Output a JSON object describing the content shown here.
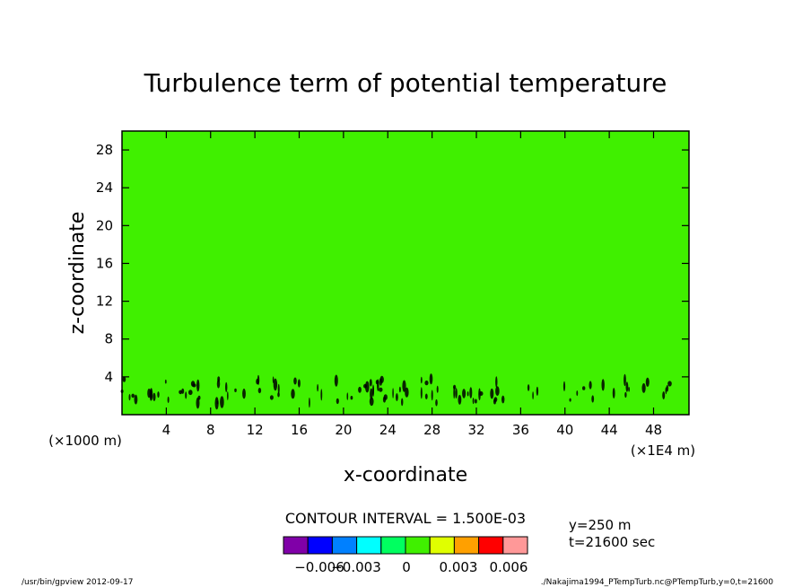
{
  "chart_data": {
    "type": "heatmap",
    "title": "Turbulence term of potential temperature",
    "xlabel": "x-coordinate",
    "ylabel": "z-coordinate",
    "x_unit": "(×1E4 m)",
    "y_unit": "(×1000 m)",
    "xlim": [
      0,
      51.2
    ],
    "ylim": [
      0,
      30
    ],
    "x_ticks": [
      4,
      8,
      12,
      16,
      20,
      24,
      28,
      32,
      36,
      40,
      44,
      48
    ],
    "y_ticks": [
      4,
      8,
      12,
      16,
      20,
      24,
      28
    ],
    "background_level": "0",
    "field_note": "Field is ~0 everywhere; small negative/positive contour cells confined to z < 4 (×1000 m)",
    "contour_interval": "CONTOUR INTERVAL = 1.500E-03",
    "colorbar": {
      "colors": [
        "#8000a8",
        "#0000ff",
        "#0080ff",
        "#00ffff",
        "#00ff60",
        "#40f000",
        "#e0ff00",
        "#ffa000",
        "#ff0000",
        "#ff9898"
      ],
      "tick_labels": [
        "−0.006",
        "−0.003",
        "0",
        "0.003",
        "0.006"
      ],
      "tick_values": [
        -0.006,
        -0.003,
        0,
        0.003,
        0.006
      ]
    },
    "info": [
      "y=250 m",
      "t=21600 sec"
    ],
    "plot_color": "#40f000"
  },
  "footer": {
    "left": "/usr/bin/gpview   2012-09-17",
    "right": "./Nakajima1994_PTempTurb.nc@PTempTurb,y=0,t=21600"
  }
}
